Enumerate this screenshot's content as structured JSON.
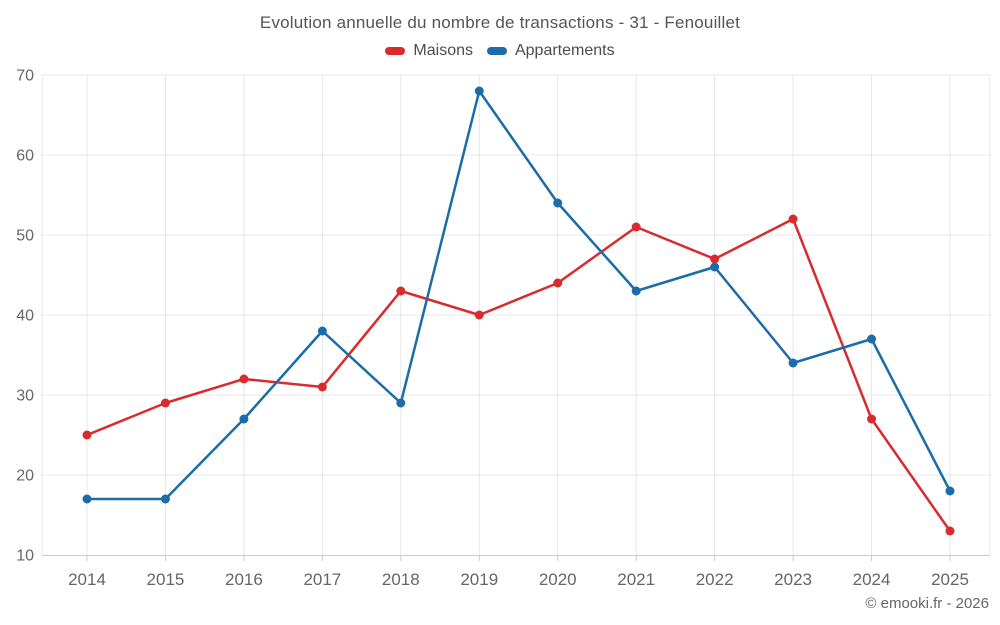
{
  "page": {
    "footer_credit": "© emooki.fr - 2026"
  },
  "chart_data": {
    "type": "line",
    "title": "Evolution annuelle du nombre de transactions - 31 - Fenouillet",
    "categories": [
      "2014",
      "2015",
      "2016",
      "2017",
      "2018",
      "2019",
      "2020",
      "2021",
      "2022",
      "2023",
      "2024",
      "2025"
    ],
    "series": [
      {
        "name": "Maisons",
        "color": "#d92b2e",
        "values": [
          25,
          29,
          32,
          31,
          43,
          40,
          44,
          51,
          47,
          52,
          27,
          13
        ]
      },
      {
        "name": "Appartements",
        "color": "#1b6ca8",
        "values": [
          17,
          17,
          27,
          38,
          29,
          68,
          54,
          43,
          46,
          34,
          37,
          18
        ]
      }
    ],
    "xlabel": "",
    "ylabel": "",
    "ylim": [
      10,
      70
    ],
    "ytick_step": 10,
    "grid": true,
    "legend_position": "top",
    "colors": {
      "grid": "#e7e7e7",
      "axis": "#cccccc",
      "tick_label": "#666666",
      "title_text": "#555555",
      "legend_text": "#4d4d4d"
    }
  }
}
